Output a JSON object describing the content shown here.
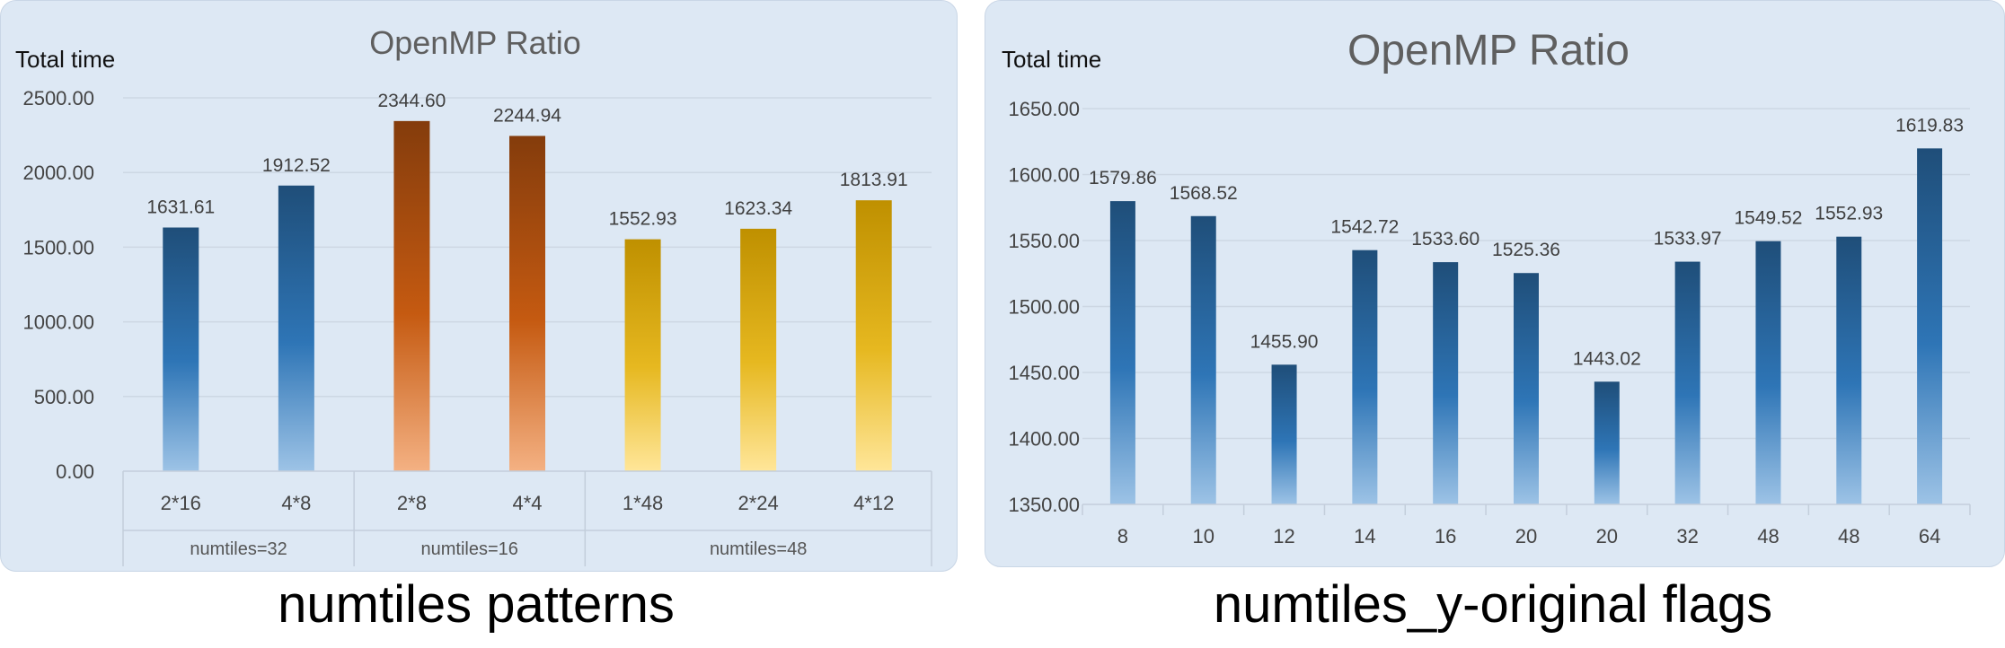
{
  "captions": {
    "left": "numtiles patterns",
    "right": "numtiles_y-original flags"
  },
  "chart_data": [
    {
      "type": "bar",
      "title": "OpenMP Ratio",
      "ylabel": "Total time",
      "xlabel": "",
      "ylim": [
        0,
        2500
      ],
      "ytick_labels": [
        "0.00",
        "500.00",
        "1000.00",
        "1500.00",
        "2000.00",
        "2500.00"
      ],
      "categories": [
        "2*16",
        "4*8",
        "2*8",
        "4*4",
        "1*48",
        "2*24",
        "4*12"
      ],
      "values": [
        1631.61,
        1912.52,
        2344.6,
        2244.94,
        1552.93,
        1623.34,
        1813.91
      ],
      "value_labels": [
        "1631.61",
        "1912.52",
        "2344.60",
        "2244.94",
        "1552.93",
        "1623.34",
        "1813.91"
      ],
      "groups": [
        {
          "label": "numtiles=32",
          "count": 2,
          "color_top": "#1f4e79",
          "color_mid": "#2e75b6",
          "color_bottom": "#9dc3e6"
        },
        {
          "label": "numtiles=16",
          "count": 2,
          "color_top": "#843c0c",
          "color_mid": "#c55a11",
          "color_bottom": "#f4b183"
        },
        {
          "label": "numtiles=48",
          "count": 3,
          "color_top": "#bf9000",
          "color_mid": "#e6b820",
          "color_bottom": "#ffe699"
        }
      ],
      "grid": true,
      "legend": "none"
    },
    {
      "type": "bar",
      "title": "OpenMP Ratio",
      "ylabel": "Total time",
      "xlabel": "",
      "ylim": [
        1350,
        1650
      ],
      "ytick_labels": [
        "1350.00",
        "1400.00",
        "1450.00",
        "1500.00",
        "1550.00",
        "1600.00",
        "1650.00"
      ],
      "categories": [
        "8",
        "10",
        "12",
        "14",
        "16",
        "20",
        "20",
        "32",
        "48",
        "48",
        "64"
      ],
      "values": [
        1579.86,
        1568.52,
        1455.9,
        1542.72,
        1533.6,
        1525.36,
        1443.02,
        1533.97,
        1549.52,
        1552.93,
        1619.83
      ],
      "value_labels": [
        "1579.86",
        "1568.52",
        "1455.90",
        "1542.72",
        "1533.60",
        "1525.36",
        "1443.02",
        "1533.97",
        "1549.52",
        "1552.93",
        "1619.83"
      ],
      "colors": {
        "top": "#1f4e79",
        "mid": "#2e75b6",
        "bottom": "#9dc3e6"
      },
      "grid": true,
      "legend": "none"
    }
  ]
}
